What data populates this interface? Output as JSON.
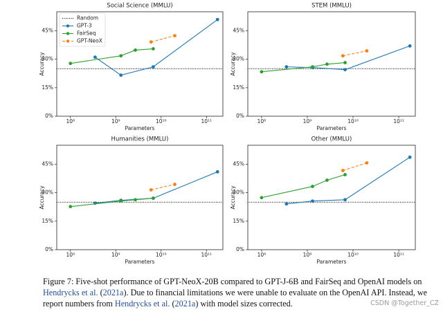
{
  "chart_data": [
    {
      "type": "line",
      "title": "Social Science (MMLU)",
      "xlabel": "Parameters",
      "ylabel": "Accuracy",
      "xscale": "log",
      "xlim": [
        50000000.0,
        230000000000.0
      ],
      "ylim": [
        0,
        55
      ],
      "xticks": [
        {
          "value": 100000000.0,
          "label": "10⁸"
        },
        {
          "value": 1000000000.0,
          "label": "10⁹"
        },
        {
          "value": 10000000000.0,
          "label": "10¹⁰"
        },
        {
          "value": 100000000000.0,
          "label": "10¹¹"
        }
      ],
      "yticks": [
        {
          "value": 0,
          "label": "0%"
        },
        {
          "value": 15,
          "label": "15%"
        },
        {
          "value": 30,
          "label": "30%"
        },
        {
          "value": 45,
          "label": "45%"
        }
      ],
      "reference_lines": [
        {
          "name": "Random",
          "value": 25,
          "color": "#000000"
        }
      ],
      "legend": "upper left",
      "series": [
        {
          "name": "GPT-3",
          "color": "#1f77b4",
          "dashed": false,
          "x": [
            350000000.0,
            1300000000.0,
            6700000000.0,
            175000000000.0
          ],
          "values": [
            31.1,
            21.6,
            26.0,
            50.9
          ]
        },
        {
          "name": "FairSeq",
          "color": "#2ca02c",
          "dashed": false,
          "x": [
            100000000.0,
            1300000000.0,
            2700000000.0,
            6700000000.0
          ],
          "values": [
            27.8,
            31.8,
            34.8,
            35.5
          ]
        },
        {
          "name": "GPT-NeoX",
          "color": "#ff7f0e",
          "dashed": true,
          "x": [
            6000000000.0,
            20000000000.0
          ],
          "values": [
            39.1,
            42.4
          ]
        }
      ]
    },
    {
      "type": "line",
      "title": "STEM (MMLU)",
      "xlabel": "Parameters",
      "ylabel": "Accuracy",
      "xscale": "log",
      "xlim": [
        50000000.0,
        230000000000.0
      ],
      "ylim": [
        0,
        55
      ],
      "xticks": [
        {
          "value": 100000000.0,
          "label": "10⁸"
        },
        {
          "value": 1000000000.0,
          "label": "10⁹"
        },
        {
          "value": 10000000000.0,
          "label": "10¹⁰"
        },
        {
          "value": 100000000000.0,
          "label": "10¹¹"
        }
      ],
      "yticks": [
        {
          "value": 0,
          "label": "0%"
        },
        {
          "value": 15,
          "label": "15%"
        },
        {
          "value": 30,
          "label": "30%"
        },
        {
          "value": 45,
          "label": "45%"
        }
      ],
      "reference_lines": [
        {
          "value": 25,
          "color": "#000000"
        }
      ],
      "series": [
        {
          "color": "#1f77b4",
          "dashed": false,
          "x": [
            350000000.0,
            1300000000.0,
            6700000000.0,
            175000000000.0
          ],
          "values": [
            26.0,
            25.6,
            24.5,
            37.0
          ]
        },
        {
          "color": "#2ca02c",
          "dashed": false,
          "x": [
            100000000.0,
            1300000000.0,
            2700000000.0,
            6700000000.0
          ],
          "values": [
            23.4,
            26.0,
            27.4,
            28.2
          ]
        },
        {
          "color": "#ff7f0e",
          "dashed": true,
          "x": [
            6000000000.0,
            20000000000.0
          ],
          "values": [
            31.8,
            34.4
          ]
        }
      ]
    },
    {
      "type": "line",
      "title": "Humanities (MMLU)",
      "xlabel": "Parameters",
      "ylabel": "Accuracy",
      "xscale": "log",
      "xlim": [
        50000000.0,
        230000000000.0
      ],
      "ylim": [
        0,
        55
      ],
      "xticks": [
        {
          "value": 100000000.0,
          "label": "10⁸"
        },
        {
          "value": 1000000000.0,
          "label": "10⁹"
        },
        {
          "value": 10000000000.0,
          "label": "10¹⁰"
        },
        {
          "value": 100000000000.0,
          "label": "10¹¹"
        }
      ],
      "yticks": [
        {
          "value": 0,
          "label": "0%"
        },
        {
          "value": 15,
          "label": "15%"
        },
        {
          "value": 30,
          "label": "30%"
        },
        {
          "value": 45,
          "label": "45%"
        }
      ],
      "reference_lines": [
        {
          "value": 25,
          "color": "#000000"
        }
      ],
      "series": [
        {
          "color": "#1f77b4",
          "dashed": false,
          "x": [
            350000000.0,
            1300000000.0,
            6700000000.0,
            175000000000.0
          ],
          "values": [
            24.5,
            26.0,
            27.1,
            41.0
          ]
        },
        {
          "color": "#2ca02c",
          "dashed": false,
          "x": [
            100000000.0,
            1300000000.0,
            2700000000.0,
            6700000000.0
          ],
          "values": [
            22.7,
            25.6,
            26.3,
            27.1
          ]
        },
        {
          "color": "#ff7f0e",
          "dashed": true,
          "x": [
            6000000000.0,
            20000000000.0
          ],
          "values": [
            31.5,
            34.4
          ]
        }
      ]
    },
    {
      "type": "line",
      "title": "Other (MMLU)",
      "xlabel": "Parameters",
      "ylabel": "Accuracy",
      "xscale": "log",
      "xlim": [
        50000000.0,
        230000000000.0
      ],
      "ylim": [
        0,
        55
      ],
      "xticks": [
        {
          "value": 100000000.0,
          "label": "10⁸"
        },
        {
          "value": 1000000000.0,
          "label": "10⁹"
        },
        {
          "value": 10000000000.0,
          "label": "10¹⁰"
        },
        {
          "value": 100000000000.0,
          "label": "10¹¹"
        }
      ],
      "yticks": [
        {
          "value": 0,
          "label": "0%"
        },
        {
          "value": 15,
          "label": "15%"
        },
        {
          "value": 30,
          "label": "30%"
        },
        {
          "value": 45,
          "label": "45%"
        }
      ],
      "reference_lines": [
        {
          "value": 25,
          "color": "#000000"
        }
      ],
      "series": [
        {
          "color": "#1f77b4",
          "dashed": false,
          "x": [
            350000000.0,
            1300000000.0,
            6700000000.0,
            175000000000.0
          ],
          "values": [
            24.1,
            25.6,
            26.3,
            48.7
          ]
        },
        {
          "color": "#2ca02c",
          "dashed": false,
          "x": [
            100000000.0,
            1300000000.0,
            2700000000.0,
            6700000000.0
          ],
          "values": [
            27.4,
            33.3,
            36.6,
            39.5
          ]
        },
        {
          "color": "#ff7f0e",
          "dashed": true,
          "x": [
            6000000000.0,
            20000000000.0
          ],
          "values": [
            41.7,
            45.7
          ]
        }
      ]
    }
  ],
  "caption": {
    "lines": [
      [
        {
          "text": "Figure 7: Five-shot performance of GPT-NeoX-20B compared to GPT-J-6B and FairSeq and OpenAI models on",
          "link": false
        }
      ],
      [
        {
          "text": "Hendrycks et al.",
          "link": true
        },
        {
          "text": " (",
          "link": false
        },
        {
          "text": "2021a",
          "link": true
        },
        {
          "text": "). Due to financial limitations we were unable to evaluate on the OpenAI API. Instead, we",
          "link": false
        }
      ],
      [
        {
          "text": "report numbers from ",
          "link": false
        },
        {
          "text": "Hendrycks et al.",
          "link": true
        },
        {
          "text": " (",
          "link": false
        },
        {
          "text": "2021a",
          "link": true
        },
        {
          "text": ") with model sizes corrected.",
          "link": false
        }
      ]
    ]
  },
  "watermark": "CSDN @Together_CZ"
}
